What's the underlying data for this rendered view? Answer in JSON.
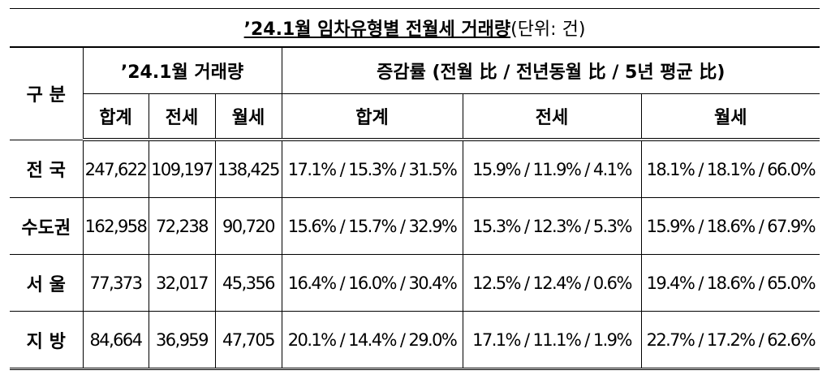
{
  "title": {
    "main": "’24.1월 임차유형별 전월세 거래량",
    "unit": "(단위: 건)"
  },
  "table": {
    "header": {
      "division": "구 분",
      "volume": "’24.1월 거래량",
      "change": "증감률 (전월 比 / 전년동월 比 / 5년 평균 比)",
      "sub": [
        "합계",
        "전세",
        "월세",
        "합계",
        "전세",
        "월세"
      ]
    },
    "rows": [
      [
        "전 국",
        "247,622",
        "109,197",
        "138,425",
        "17.1% / 15.3% / 31.5%",
        "15.9% / 11.9% / 4.1%",
        "18.1% / 18.1% / 66.0%"
      ],
      [
        "수도권",
        "162,958",
        "72,238",
        "90,720",
        "15.6% / 15.7% / 32.9%",
        "15.3% / 12.3% / 5.3%",
        "15.9% / 18.6% / 67.9%"
      ],
      [
        "서 울",
        "77,373",
        "32,017",
        "45,356",
        "16.4% / 16.0% / 30.4%",
        "12.5% / 12.4% / 0.6%",
        "19.4% / 18.6% / 65.0%"
      ],
      [
        "지 방",
        "84,664",
        "36,959",
        "47,705",
        "20.1% / 14.4% / 29.0%",
        "17.1% / 11.1% / 1.9%",
        "22.7% / 17.2% / 62.6%"
      ]
    ]
  }
}
